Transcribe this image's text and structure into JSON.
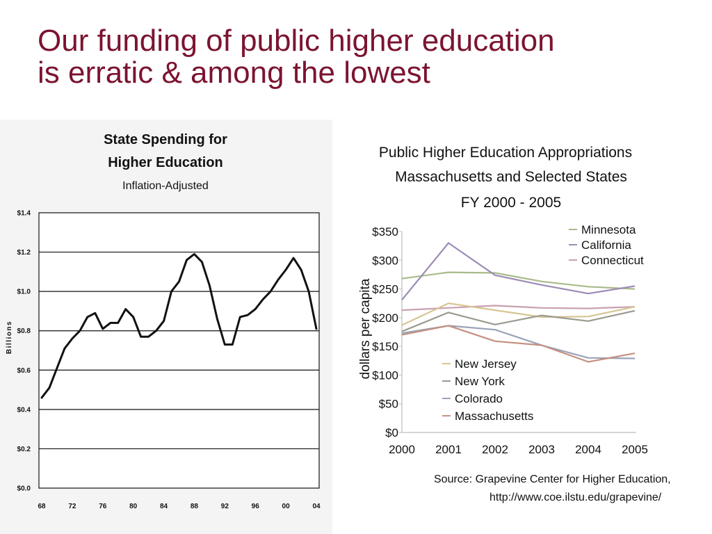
{
  "slide": {
    "title_line1": "Our funding of public higher education",
    "title_line2": "is erratic & among the lowest",
    "title_color": "#7b1430"
  },
  "chart_data": [
    {
      "type": "line",
      "title": "State Spending for",
      "title2": "Higher Education",
      "subtitle": "Inflation-Adjusted",
      "ylabel": "Billions",
      "xlabel": "",
      "ylim": [
        0,
        1.4
      ],
      "yticks": [
        0.0,
        0.2,
        0.4,
        0.6,
        0.8,
        1.0,
        1.2,
        1.4
      ],
      "ytick_labels": [
        "$0.0",
        "$0.2",
        "$0.4",
        "$0.6",
        "$0.8",
        "$1.0",
        "$1.2",
        "$1.4"
      ],
      "xlim": [
        1968,
        2004
      ],
      "xticks": [
        1968,
        1972,
        1976,
        1980,
        1984,
        1988,
        1992,
        1996,
        2000,
        2004
      ],
      "xtick_labels": [
        "68",
        "72",
        "76",
        "80",
        "84",
        "88",
        "92",
        "96",
        "00",
        "04"
      ],
      "grid": "horizontal",
      "line_color": "#111111",
      "series": [
        {
          "x": [
            1968,
            1969,
            1970,
            1971,
            1972,
            1973,
            1974,
            1975,
            1976,
            1977,
            1978,
            1979,
            1980,
            1981,
            1982,
            1983,
            1984,
            1985,
            1986,
            1987,
            1988,
            1989,
            1990,
            1991,
            1992,
            1993,
            1994,
            1995,
            1996,
            1997,
            1998,
            1999,
            2000,
            2001,
            2002,
            2003,
            2004
          ],
          "y": [
            0.46,
            0.51,
            0.61,
            0.71,
            0.76,
            0.8,
            0.87,
            0.89,
            0.81,
            0.84,
            0.84,
            0.91,
            0.87,
            0.77,
            0.77,
            0.8,
            0.85,
            1.0,
            1.05,
            1.16,
            1.19,
            1.15,
            1.03,
            0.86,
            0.73,
            0.73,
            0.87,
            0.88,
            0.91,
            0.96,
            1.0,
            1.06,
            1.11,
            1.17,
            1.11,
            1.0,
            0.81
          ]
        }
      ]
    },
    {
      "type": "line",
      "title": "Public Higher Education Appropriations",
      "title2": "Massachusetts and Selected States",
      "subtitle": "FY 2000 - 2005",
      "ylabel": "dollars per capita",
      "xlabel": "",
      "ylim": [
        0,
        350
      ],
      "yticks": [
        0,
        50,
        100,
        150,
        200,
        250,
        300,
        350
      ],
      "ytick_labels": [
        "$0",
        "$50",
        "$100",
        "$150",
        "$200",
        "$250",
        "$300",
        "$350"
      ],
      "categories": [
        "2000",
        "2001",
        "2002",
        "2003",
        "2004",
        "2005"
      ],
      "grid": "none",
      "legend_placement": "top-right and lower-left",
      "series": [
        {
          "name": "Minnesota",
          "color": "#a9ba8a",
          "values": [
            268,
            279,
            278,
            263,
            254,
            250
          ]
        },
        {
          "name": "California",
          "color": "#9b8bb5",
          "values": [
            231,
            330,
            274,
            257,
            242,
            255
          ]
        },
        {
          "name": "Connecticut",
          "color": "#c9a0b0",
          "values": [
            213,
            217,
            221,
            217,
            216,
            219
          ]
        },
        {
          "name": "New Jersey",
          "color": "#d7c592",
          "values": [
            187,
            225,
            213,
            201,
            202,
            219
          ]
        },
        {
          "name": "New York",
          "color": "#9a9a90",
          "values": [
            176,
            209,
            188,
            204,
            194,
            212
          ]
        },
        {
          "name": "Colorado",
          "color": "#9aa3b8",
          "values": [
            173,
            186,
            179,
            152,
            130,
            129
          ]
        },
        {
          "name": "Massachusetts",
          "color": "#c49080",
          "values": [
            170,
            186,
            159,
            152,
            123,
            138
          ]
        }
      ],
      "source_line1": "Source: Grapevine Center for Higher Education,",
      "source_line2": "http://www.coe.ilstu.edu/grapevine/"
    }
  ]
}
